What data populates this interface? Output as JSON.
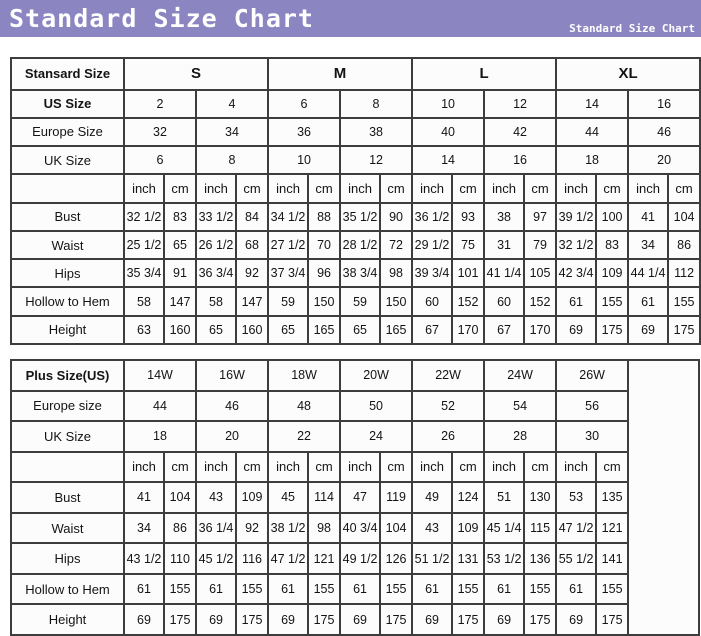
{
  "header": {
    "title": "Standard Size Chart",
    "watermark": "Standard Size Chart",
    "accent_color": "#8b85c1",
    "text_color": "#ffffff"
  },
  "chart_data": [
    {
      "type": "table",
      "title": "Standard sizes",
      "corner_label": "Stansard Size",
      "size_groups": [
        {
          "label": "S",
          "span": 2
        },
        {
          "label": "M",
          "span": 2
        },
        {
          "label": "L",
          "span": 2
        },
        {
          "label": "XL",
          "span": 2
        }
      ],
      "header_rows": [
        {
          "label": "US Size",
          "bold": true,
          "values": [
            "2",
            "4",
            "6",
            "8",
            "10",
            "12",
            "14",
            "16"
          ]
        },
        {
          "label": "Europe Size",
          "bold": false,
          "values": [
            "32",
            "34",
            "36",
            "38",
            "40",
            "42",
            "44",
            "46"
          ]
        },
        {
          "label": "UK Size",
          "bold": false,
          "values": [
            "6",
            "8",
            "10",
            "12",
            "14",
            "16",
            "18",
            "20"
          ]
        }
      ],
      "unit_labels": [
        "inch",
        "cm"
      ],
      "measurement_rows": [
        {
          "label": "Bust",
          "inch": [
            "32 1/2",
            "33 1/2",
            "34 1/2",
            "35 1/2",
            "36 1/2",
            "38",
            "39 1/2",
            "41"
          ],
          "cm": [
            "83",
            "84",
            "88",
            "90",
            "93",
            "97",
            "100",
            "104"
          ]
        },
        {
          "label": "Waist",
          "inch": [
            "25 1/2",
            "26 1/2",
            "27 1/2",
            "28 1/2",
            "29 1/2",
            "31",
            "32 1/2",
            "34"
          ],
          "cm": [
            "65",
            "68",
            "70",
            "72",
            "75",
            "79",
            "83",
            "86"
          ]
        },
        {
          "label": "Hips",
          "inch": [
            "35 3/4",
            "36 3/4",
            "37 3/4",
            "38 3/4",
            "39 3/4",
            "41 1/4",
            "42 3/4",
            "44 1/4"
          ],
          "cm": [
            "91",
            "92",
            "96",
            "98",
            "101",
            "105",
            "109",
            "112"
          ]
        },
        {
          "label": "Hollow to Hem",
          "inch": [
            "58",
            "58",
            "59",
            "59",
            "60",
            "60",
            "61",
            "61"
          ],
          "cm": [
            "147",
            "147",
            "150",
            "150",
            "152",
            "152",
            "155",
            "155"
          ]
        },
        {
          "label": "Height",
          "inch": [
            "63",
            "65",
            "65",
            "65",
            "67",
            "67",
            "69",
            "69"
          ],
          "cm": [
            "160",
            "160",
            "165",
            "165",
            "170",
            "170",
            "175",
            "175"
          ]
        }
      ]
    },
    {
      "type": "table",
      "title": "Plus sizes",
      "corner_label": "Plus Size(US)",
      "size_groups": [
        {
          "label": "14W",
          "span": 1
        },
        {
          "label": "16W",
          "span": 1
        },
        {
          "label": "18W",
          "span": 1
        },
        {
          "label": "20W",
          "span": 1
        },
        {
          "label": "22W",
          "span": 1
        },
        {
          "label": "24W",
          "span": 1
        },
        {
          "label": "26W",
          "span": 1
        }
      ],
      "header_rows": [
        {
          "label": "Europe size",
          "bold": false,
          "values": [
            "44",
            "46",
            "48",
            "50",
            "52",
            "54",
            "56"
          ]
        },
        {
          "label": "UK Size",
          "bold": false,
          "values": [
            "18",
            "20",
            "22",
            "24",
            "26",
            "28",
            "30"
          ]
        }
      ],
      "unit_labels": [
        "inch",
        "cm"
      ],
      "measurement_rows": [
        {
          "label": "Bust",
          "inch": [
            "41",
            "43",
            "45",
            "47",
            "49",
            "51",
            "53"
          ],
          "cm": [
            "104",
            "109",
            "114",
            "119",
            "124",
            "130",
            "135"
          ]
        },
        {
          "label": "Waist",
          "inch": [
            "34",
            "36 1/4",
            "38 1/2",
            "40 3/4",
            "43",
            "45 1/4",
            "47 1/2"
          ],
          "cm": [
            "86",
            "92",
            "98",
            "104",
            "109",
            "115",
            "121"
          ]
        },
        {
          "label": "Hips",
          "inch": [
            "43 1/2",
            "45 1/2",
            "47 1/2",
            "49 1/2",
            "51 1/2",
            "53 1/2",
            "55 1/2"
          ],
          "cm": [
            "110",
            "116",
            "121",
            "126",
            "131",
            "136",
            "141"
          ]
        },
        {
          "label": "Hollow to Hem",
          "inch": [
            "61",
            "61",
            "61",
            "61",
            "61",
            "61",
            "61"
          ],
          "cm": [
            "155",
            "155",
            "155",
            "155",
            "155",
            "155",
            "155"
          ]
        },
        {
          "label": "Height",
          "inch": [
            "69",
            "69",
            "69",
            "69",
            "69",
            "69",
            "69"
          ],
          "cm": [
            "175",
            "175",
            "175",
            "175",
            "175",
            "175",
            "175"
          ]
        }
      ],
      "has_trailing_empty_column": true
    }
  ]
}
